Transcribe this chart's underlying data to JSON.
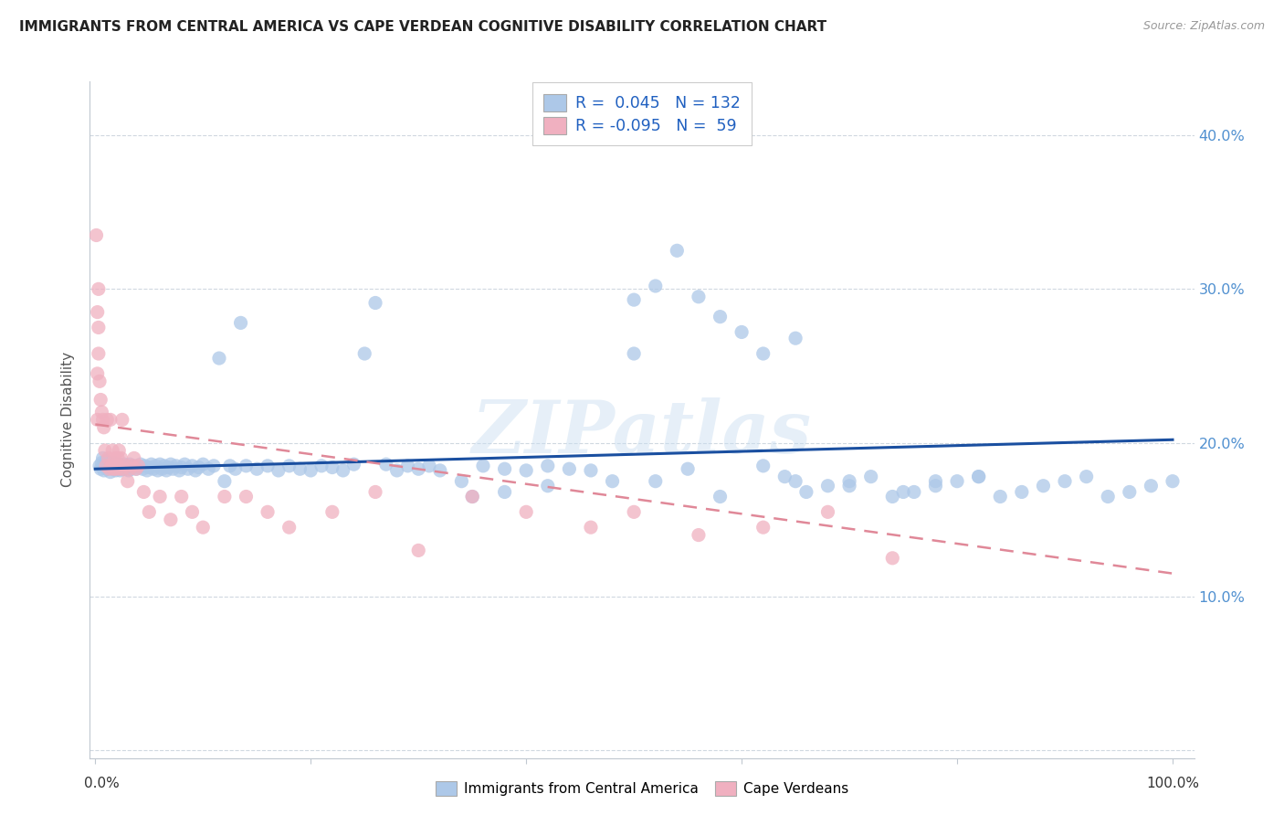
{
  "title": "IMMIGRANTS FROM CENTRAL AMERICA VS CAPE VERDEAN COGNITIVE DISABILITY CORRELATION CHART",
  "source": "Source: ZipAtlas.com",
  "ylabel": "Cognitive Disability",
  "legend_blue_R": "0.045",
  "legend_blue_N": "132",
  "legend_pink_R": "-0.095",
  "legend_pink_N": "59",
  "legend_label_blue": "Immigrants from Central America",
  "legend_label_pink": "Cape Verdeans",
  "blue_color": "#adc8e8",
  "pink_color": "#f0b0c0",
  "blue_line_color": "#1a4fa0",
  "pink_line_color": "#e08898",
  "watermark": "ZIPatlas",
  "blue_trend": [
    0.0,
    1.0,
    0.183,
    0.202
  ],
  "pink_trend": [
    0.0,
    1.0,
    0.212,
    0.115
  ],
  "blue_x": [
    0.004,
    0.005,
    0.006,
    0.007,
    0.008,
    0.009,
    0.01,
    0.011,
    0.012,
    0.013,
    0.014,
    0.015,
    0.016,
    0.017,
    0.018,
    0.019,
    0.02,
    0.021,
    0.022,
    0.023,
    0.024,
    0.025,
    0.026,
    0.027,
    0.028,
    0.03,
    0.031,
    0.032,
    0.033,
    0.035,
    0.036,
    0.038,
    0.04,
    0.042,
    0.044,
    0.046,
    0.048,
    0.05,
    0.052,
    0.054,
    0.056,
    0.058,
    0.06,
    0.062,
    0.064,
    0.066,
    0.068,
    0.07,
    0.072,
    0.075,
    0.078,
    0.08,
    0.083,
    0.086,
    0.09,
    0.093,
    0.096,
    0.1,
    0.105,
    0.11,
    0.115,
    0.12,
    0.125,
    0.13,
    0.135,
    0.14,
    0.15,
    0.16,
    0.17,
    0.18,
    0.19,
    0.2,
    0.21,
    0.22,
    0.23,
    0.24,
    0.25,
    0.26,
    0.27,
    0.28,
    0.29,
    0.3,
    0.31,
    0.32,
    0.34,
    0.36,
    0.38,
    0.4,
    0.42,
    0.44,
    0.46,
    0.48,
    0.5,
    0.52,
    0.55,
    0.58,
    0.62,
    0.65,
    0.7,
    0.75,
    0.78,
    0.82,
    0.5,
    0.52,
    0.54,
    0.56,
    0.58,
    0.6,
    0.62,
    0.64,
    0.65,
    0.66,
    0.68,
    0.7,
    0.72,
    0.74,
    0.76,
    0.78,
    0.8,
    0.82,
    0.84,
    0.86,
    0.88,
    0.9,
    0.92,
    0.94,
    0.96,
    0.98,
    1.0,
    0.35,
    0.38,
    0.42
  ],
  "blue_y": [
    0.185,
    0.183,
    0.187,
    0.19,
    0.182,
    0.185,
    0.188,
    0.183,
    0.186,
    0.184,
    0.181,
    0.186,
    0.183,
    0.187,
    0.184,
    0.182,
    0.185,
    0.183,
    0.186,
    0.182,
    0.185,
    0.183,
    0.184,
    0.186,
    0.183,
    0.185,
    0.182,
    0.186,
    0.183,
    0.184,
    0.185,
    0.183,
    0.184,
    0.186,
    0.183,
    0.185,
    0.182,
    0.184,
    0.186,
    0.183,
    0.185,
    0.182,
    0.186,
    0.183,
    0.185,
    0.182,
    0.184,
    0.186,
    0.183,
    0.185,
    0.182,
    0.184,
    0.186,
    0.183,
    0.185,
    0.182,
    0.184,
    0.186,
    0.183,
    0.185,
    0.255,
    0.175,
    0.185,
    0.183,
    0.278,
    0.185,
    0.183,
    0.185,
    0.182,
    0.185,
    0.183,
    0.182,
    0.185,
    0.184,
    0.182,
    0.186,
    0.258,
    0.291,
    0.186,
    0.182,
    0.185,
    0.183,
    0.185,
    0.182,
    0.175,
    0.185,
    0.183,
    0.182,
    0.185,
    0.183,
    0.182,
    0.175,
    0.258,
    0.175,
    0.183,
    0.165,
    0.185,
    0.268,
    0.172,
    0.168,
    0.175,
    0.178,
    0.293,
    0.302,
    0.325,
    0.295,
    0.282,
    0.272,
    0.258,
    0.178,
    0.175,
    0.168,
    0.172,
    0.175,
    0.178,
    0.165,
    0.168,
    0.172,
    0.175,
    0.178,
    0.165,
    0.168,
    0.172,
    0.175,
    0.178,
    0.165,
    0.168,
    0.172,
    0.175,
    0.165,
    0.168,
    0.172
  ],
  "pink_x": [
    0.002,
    0.003,
    0.004,
    0.005,
    0.006,
    0.007,
    0.008,
    0.009,
    0.01,
    0.011,
    0.012,
    0.013,
    0.014,
    0.015,
    0.016,
    0.017,
    0.018,
    0.019,
    0.02,
    0.021,
    0.022,
    0.023,
    0.024,
    0.025,
    0.026,
    0.028,
    0.03,
    0.032,
    0.034,
    0.036,
    0.038,
    0.04,
    0.045,
    0.05,
    0.06,
    0.07,
    0.08,
    0.09,
    0.1,
    0.12,
    0.14,
    0.16,
    0.18,
    0.22,
    0.26,
    0.3,
    0.35,
    0.4,
    0.46,
    0.5,
    0.56,
    0.62,
    0.68,
    0.74,
    0.001,
    0.002,
    0.003,
    0.002,
    0.003
  ],
  "pink_y": [
    0.215,
    0.258,
    0.24,
    0.228,
    0.22,
    0.215,
    0.21,
    0.195,
    0.185,
    0.215,
    0.19,
    0.183,
    0.215,
    0.185,
    0.195,
    0.183,
    0.19,
    0.183,
    0.185,
    0.19,
    0.195,
    0.183,
    0.19,
    0.215,
    0.183,
    0.185,
    0.175,
    0.183,
    0.185,
    0.19,
    0.183,
    0.185,
    0.168,
    0.155,
    0.165,
    0.15,
    0.165,
    0.155,
    0.145,
    0.165,
    0.165,
    0.155,
    0.145,
    0.155,
    0.168,
    0.13,
    0.165,
    0.155,
    0.145,
    0.155,
    0.14,
    0.145,
    0.155,
    0.125,
    0.335,
    0.285,
    0.275,
    0.245,
    0.3
  ]
}
